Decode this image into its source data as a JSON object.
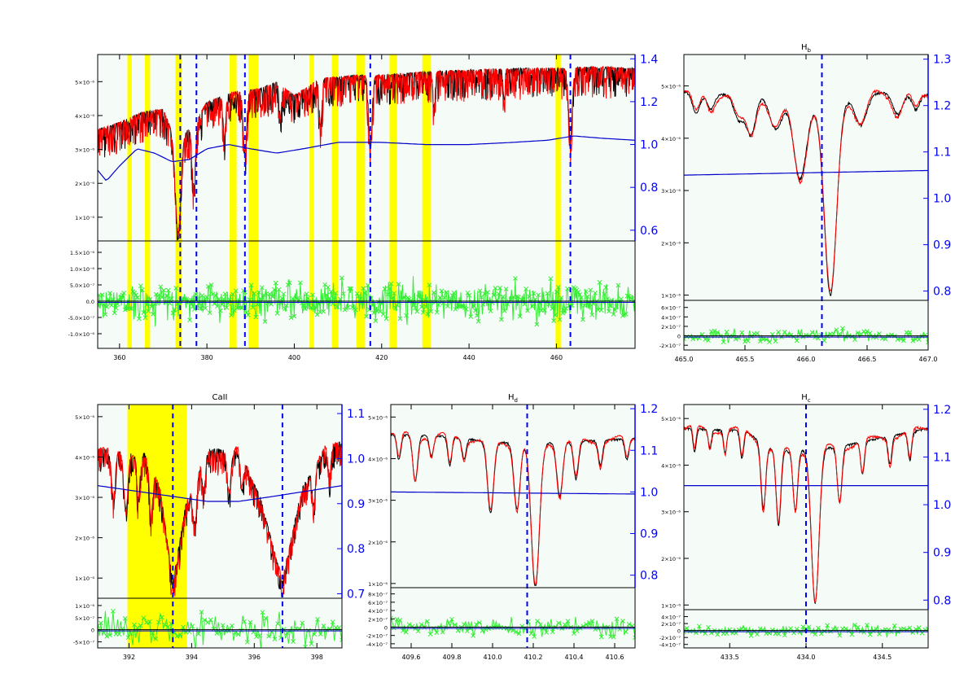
{
  "colors": {
    "background": "#ffffff",
    "panel_bg": "#f5fbf7",
    "model": "#ff0000",
    "observed": "#000000",
    "continuum": "#0000cc",
    "residual": "#33ee33",
    "highlight": "#ffff00",
    "line_marker": "#0000ff",
    "right_axis": "#0000ff"
  },
  "chart_data": [
    {
      "type": "line",
      "panel": "overview",
      "title": "",
      "xlabel": "",
      "ylabel": "",
      "xlim": [
        355,
        478
      ],
      "x_ticks": [
        "360",
        "380",
        "400",
        "420",
        "440",
        "460"
      ],
      "x_tick_values": [
        360,
        380,
        400,
        420,
        440,
        460
      ],
      "y_ticks_left": [
        "1×10⁻⁶",
        "2×10⁻⁶",
        "3×10⁻⁶",
        "4×10⁻⁶",
        "5×10⁻⁶"
      ],
      "y_tick_values_left": [
        1,
        2,
        3,
        4,
        5
      ],
      "ylim_left": [
        0.3,
        5.8
      ],
      "y_ticks_right": [
        "1.4",
        "1.2",
        "1.0",
        "0.8",
        "0.6"
      ],
      "y_tick_values_right": [
        1.4,
        1.2,
        1.0,
        0.8,
        0.6
      ],
      "ylim_right": [
        0.55,
        1.42
      ],
      "residual_ticks": [
        "1.5×10⁻⁶",
        "1.0×10⁻⁶",
        "5.0×10⁻⁷",
        "0.0",
        "-5.0×10⁻⁷",
        "-1.0×10⁻⁶"
      ],
      "residual_tick_values": [
        1.5,
        1.0,
        0.5,
        0,
        -0.5,
        -1.0
      ],
      "residual_ylim": [
        -1.45,
        1.85
      ],
      "residual_amp": 0.35,
      "highlight_bands": [
        [
          361.8,
          362.8
        ],
        [
          365.8,
          367.0
        ],
        [
          372.8,
          374.2
        ],
        [
          385.2,
          386.8
        ],
        [
          389.5,
          391.8
        ],
        [
          403.5,
          404.5
        ],
        [
          408.6,
          410.1
        ],
        [
          414.2,
          416.2
        ],
        [
          421.8,
          423.5
        ],
        [
          429.3,
          431.2
        ],
        [
          459.8,
          461.0
        ]
      ],
      "line_markers": [
        373.9,
        377.6,
        388.7,
        417.4,
        463.2
      ],
      "continuum_right": [
        [
          355,
          0.88
        ],
        [
          357,
          0.83
        ],
        [
          360,
          0.9
        ],
        [
          364,
          0.98
        ],
        [
          368,
          0.96
        ],
        [
          372,
          0.92
        ],
        [
          376,
          0.93
        ],
        [
          380,
          0.98
        ],
        [
          385,
          1.0
        ],
        [
          390,
          0.98
        ],
        [
          396,
          0.96
        ],
        [
          402,
          0.98
        ],
        [
          410,
          1.01
        ],
        [
          420,
          1.01
        ],
        [
          430,
          1.0
        ],
        [
          440,
          1.0
        ],
        [
          450,
          1.01
        ],
        [
          458,
          1.02
        ],
        [
          464,
          1.04
        ],
        [
          470,
          1.03
        ],
        [
          478,
          1.02
        ]
      ],
      "spectrum_envelope": [
        [
          355,
          3.6
        ],
        [
          360,
          3.8
        ],
        [
          365,
          4.1
        ],
        [
          370,
          4.2
        ],
        [
          373,
          3.2
        ],
        [
          377,
          3.8
        ],
        [
          380,
          4.4
        ],
        [
          386,
          4.7
        ],
        [
          392,
          4.8
        ],
        [
          396,
          5.0
        ],
        [
          400,
          4.6
        ],
        [
          406,
          5.1
        ],
        [
          414,
          5.2
        ],
        [
          420,
          5.2
        ],
        [
          430,
          5.3
        ],
        [
          440,
          5.35
        ],
        [
          450,
          5.4
        ],
        [
          460,
          5.4
        ],
        [
          470,
          5.45
        ],
        [
          478,
          5.4
        ]
      ],
      "absorption_lines": [
        [
          373.4,
          2.6,
          0.6
        ],
        [
          377.0,
          1.8,
          0.4
        ],
        [
          384.0,
          1.2,
          0.3
        ],
        [
          388.7,
          1.8,
          0.4
        ],
        [
          396.8,
          1.0,
          0.25
        ],
        [
          406.0,
          1.4,
          0.3
        ],
        [
          417.4,
          2.0,
          0.4
        ],
        [
          432.0,
          1.0,
          0.25
        ],
        [
          463.2,
          2.2,
          0.4
        ],
        [
          448.0,
          0.9,
          0.2
        ]
      ]
    },
    {
      "type": "line",
      "panel": "Hb",
      "title": "H",
      "title_sub": "b",
      "xlim": [
        465.0,
        467.0
      ],
      "x_ticks": [
        "465.0",
        "465.5",
        "466.0",
        "466.5",
        "467.0"
      ],
      "x_tick_values": [
        465.0,
        465.5,
        466.0,
        466.5,
        467.0
      ],
      "y_ticks_left": [
        "1×10⁻⁶",
        "2×10⁻⁶",
        "3×10⁻⁶",
        "4×10⁻⁶",
        "5×10⁻⁶"
      ],
      "y_tick_values_left": [
        1,
        2,
        3,
        4,
        5
      ],
      "ylim_left": [
        0.9,
        5.6
      ],
      "y_ticks_right": [
        "1.3",
        "1.2",
        "1.1",
        "1.0",
        "0.9",
        "0.8"
      ],
      "y_tick_values_right": [
        1.3,
        1.2,
        1.1,
        1.0,
        0.9,
        0.8
      ],
      "ylim_right": [
        0.78,
        1.31
      ],
      "residual_ticks": [
        "6×10⁻⁷",
        "4×10⁻⁷",
        "2×10⁻⁷",
        "0",
        "-2×10⁻⁷"
      ],
      "residual_tick_values": [
        6,
        4,
        2,
        0,
        -2
      ],
      "residual_ylim": [
        -3,
        7.5
      ],
      "residual_amp": 0.8,
      "line_markers": [
        466.13
      ],
      "continuum_right": [
        [
          465.0,
          1.05
        ],
        [
          467.0,
          1.06
        ]
      ],
      "spectrum_envelope": [
        [
          465.0,
          4.9
        ],
        [
          465.3,
          4.85
        ],
        [
          465.6,
          4.9
        ],
        [
          466.0,
          4.6
        ],
        [
          466.5,
          4.9
        ],
        [
          467.0,
          4.85
        ]
      ],
      "absorption_lines": [
        [
          465.1,
          0.4,
          0.03
        ],
        [
          465.22,
          0.3,
          0.03
        ],
        [
          465.45,
          0.5,
          0.04
        ],
        [
          465.55,
          0.8,
          0.04
        ],
        [
          465.75,
          0.6,
          0.05
        ],
        [
          465.95,
          1.4,
          0.05
        ],
        [
          466.2,
          3.7,
          0.05
        ],
        [
          466.45,
          0.6,
          0.05
        ],
        [
          466.75,
          0.4,
          0.04
        ],
        [
          466.9,
          0.3,
          0.03
        ]
      ]
    },
    {
      "type": "line",
      "panel": "CaII",
      "title": "CaII",
      "title_sub": "",
      "xlim": [
        391.0,
        398.8
      ],
      "x_ticks": [
        "392",
        "394",
        "396",
        "398"
      ],
      "x_tick_values": [
        392,
        394,
        396,
        398
      ],
      "y_ticks_left": [
        "1×10⁻⁶",
        "2×10⁻⁶",
        "3×10⁻⁶",
        "4×10⁻⁶",
        "5×10⁻⁶"
      ],
      "y_tick_values_left": [
        1,
        2,
        3,
        4,
        5
      ],
      "ylim_left": [
        0.5,
        5.3
      ],
      "y_ticks_right": [
        "1.1",
        "1.0",
        "0.9",
        "0.8",
        "0.7"
      ],
      "y_tick_values_right": [
        1.1,
        1.0,
        0.9,
        0.8,
        0.7
      ],
      "ylim_right": [
        0.69,
        1.12
      ],
      "residual_ticks": [
        "1×10⁻⁶",
        "5×10⁻⁷",
        "0",
        "-5×10⁻⁷"
      ],
      "residual_tick_values": [
        1,
        0.5,
        0,
        -0.5
      ],
      "residual_ylim": [
        -0.75,
        1.3
      ],
      "residual_amp": 0.45,
      "highlight_bands": [
        [
          391.95,
          393.85
        ]
      ],
      "line_markers": [
        393.4,
        396.9
      ],
      "continuum_right": [
        [
          391.0,
          0.94
        ],
        [
          393.0,
          0.92
        ],
        [
          394.5,
          0.905
        ],
        [
          395.5,
          0.905
        ],
        [
          396.5,
          0.915
        ],
        [
          398.8,
          0.94
        ]
      ],
      "spectrum_envelope": [
        [
          391.0,
          4.2
        ],
        [
          392.5,
          4.1
        ],
        [
          393.0,
          3.2
        ],
        [
          393.4,
          0.9
        ],
        [
          393.8,
          2.8
        ],
        [
          394.5,
          4.2
        ],
        [
          395.5,
          4.2
        ],
        [
          396.2,
          3.0
        ],
        [
          396.9,
          0.9
        ],
        [
          397.5,
          3.2
        ],
        [
          398.2,
          4.2
        ],
        [
          398.8,
          4.4
        ]
      ],
      "absorption_lines": [
        [
          391.5,
          1.2,
          0.06
        ],
        [
          391.9,
          1.4,
          0.06
        ],
        [
          392.3,
          1.1,
          0.05
        ],
        [
          392.7,
          1.3,
          0.05
        ],
        [
          394.1,
          1.0,
          0.06
        ],
        [
          394.4,
          0.8,
          0.05
        ],
        [
          395.2,
          1.0,
          0.06
        ],
        [
          395.6,
          0.8,
          0.05
        ],
        [
          397.9,
          0.9,
          0.05
        ],
        [
          398.4,
          0.7,
          0.05
        ]
      ]
    },
    {
      "type": "line",
      "panel": "Hd",
      "title": "H",
      "title_sub": "d",
      "xlim": [
        409.5,
        410.7
      ],
      "x_ticks": [
        "409.6",
        "409.8",
        "410.0",
        "410.2",
        "410.4",
        "410.6"
      ],
      "x_tick_values": [
        409.6,
        409.8,
        410.0,
        410.2,
        410.4,
        410.6
      ],
      "y_ticks_left": [
        "1×10⁻⁶",
        "2×10⁻⁶",
        "3×10⁻⁶",
        "4×10⁻⁶",
        "5×10⁻⁶"
      ],
      "y_tick_values_left": [
        1,
        2,
        3,
        4,
        5
      ],
      "ylim_left": [
        0.9,
        5.3
      ],
      "y_ticks_right": [
        "1.2",
        "1.1",
        "1.0",
        "0.9",
        "0.8"
      ],
      "y_tick_values_right": [
        1.2,
        1.1,
        1.0,
        0.9,
        0.8
      ],
      "ylim_right": [
        0.77,
        1.21
      ],
      "residual_ticks": [
        "8×10⁻⁷",
        "6×10⁻⁷",
        "4×10⁻⁷",
        "2×10⁻⁷",
        "0",
        "-2×10⁻⁷",
        "-4×10⁻⁷"
      ],
      "residual_tick_values": [
        8,
        6,
        4,
        2,
        0,
        -2,
        -4
      ],
      "residual_ylim": [
        -5,
        9.5
      ],
      "residual_amp": 1.4,
      "line_markers": [
        410.17
      ],
      "continuum_right": [
        [
          409.5,
          1.0
        ],
        [
          410.7,
          0.995
        ]
      ],
      "spectrum_envelope": [
        [
          409.5,
          4.6
        ],
        [
          409.8,
          4.55
        ],
        [
          410.0,
          4.4
        ],
        [
          410.3,
          4.4
        ],
        [
          410.7,
          4.5
        ]
      ],
      "absorption_lines": [
        [
          409.54,
          0.6,
          0.01
        ],
        [
          409.62,
          1.1,
          0.012
        ],
        [
          409.7,
          0.5,
          0.01
        ],
        [
          409.79,
          0.7,
          0.01
        ],
        [
          409.86,
          0.5,
          0.01
        ],
        [
          409.99,
          1.7,
          0.015
        ],
        [
          410.12,
          1.6,
          0.015
        ],
        [
          410.21,
          3.5,
          0.02
        ],
        [
          410.33,
          1.3,
          0.014
        ],
        [
          410.41,
          0.9,
          0.012
        ],
        [
          410.53,
          0.6,
          0.01
        ],
        [
          410.66,
          0.5,
          0.01
        ]
      ]
    },
    {
      "type": "line",
      "panel": "Hc",
      "title": "H",
      "title_sub": "c",
      "xlim": [
        433.2,
        434.8
      ],
      "x_ticks": [
        "433.5",
        "434.0",
        "434.5"
      ],
      "x_tick_values": [
        433.5,
        434.0,
        434.5
      ],
      "y_ticks_left": [
        "1×10⁻⁶",
        "2×10⁻⁶",
        "3×10⁻⁶",
        "4×10⁻⁶",
        "5×10⁻⁶"
      ],
      "y_tick_values_left": [
        1,
        2,
        3,
        4,
        5
      ],
      "ylim_left": [
        0.9,
        5.3
      ],
      "y_ticks_right": [
        "1.2",
        "1.1",
        "1.0",
        "0.9",
        "0.8"
      ],
      "y_tick_values_right": [
        1.2,
        1.1,
        1.0,
        0.9,
        0.8
      ],
      "ylim_right": [
        0.78,
        1.21
      ],
      "residual_ticks": [
        "4×10⁻⁷",
        "2×10⁻⁷",
        "0",
        "-2×10⁻⁷",
        "-4×10⁻⁷"
      ],
      "residual_tick_values": [
        4,
        2,
        0,
        -2,
        -4
      ],
      "residual_ylim": [
        -5,
        6
      ],
      "residual_amp": 0.9,
      "line_markers": [
        434.0
      ],
      "continuum_right": [
        [
          433.2,
          1.04
        ],
        [
          434.8,
          1.04
        ]
      ],
      "spectrum_envelope": [
        [
          433.2,
          4.8
        ],
        [
          433.6,
          4.75
        ],
        [
          433.8,
          4.3
        ],
        [
          434.2,
          4.4
        ],
        [
          434.8,
          4.8
        ]
      ],
      "absorption_lines": [
        [
          433.27,
          0.5,
          0.01
        ],
        [
          433.37,
          0.4,
          0.01
        ],
        [
          433.47,
          0.5,
          0.01
        ],
        [
          433.58,
          0.6,
          0.012
        ],
        [
          433.72,
          1.4,
          0.015
        ],
        [
          433.82,
          1.6,
          0.015
        ],
        [
          433.93,
          1.3,
          0.015
        ],
        [
          434.06,
          3.3,
          0.025
        ],
        [
          434.22,
          1.2,
          0.015
        ],
        [
          434.37,
          0.7,
          0.012
        ],
        [
          434.55,
          0.6,
          0.012
        ],
        [
          434.68,
          0.6,
          0.012
        ]
      ]
    }
  ]
}
